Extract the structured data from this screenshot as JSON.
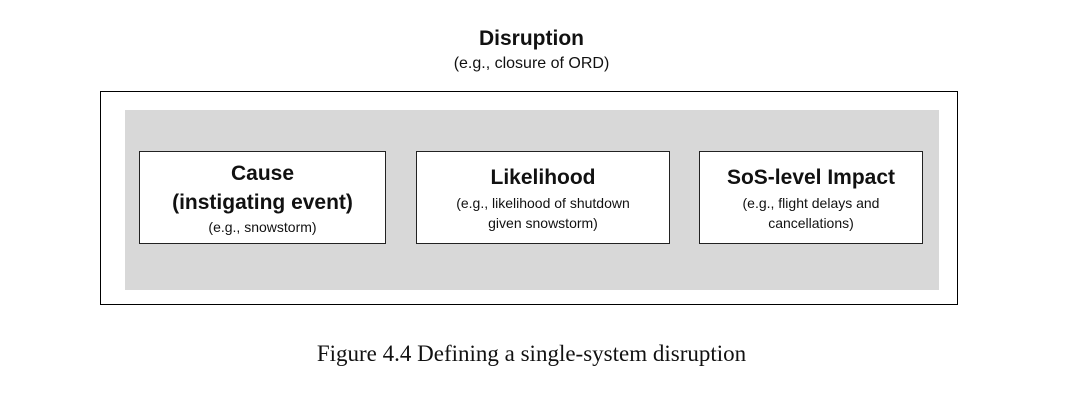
{
  "header": {
    "title": "Disruption",
    "subtitle": "(e.g., closure of ORD)"
  },
  "boxes": [
    {
      "title_line1": "Cause",
      "title_line2": "(instigating event)",
      "detail_line1": "(e.g., snowstorm)"
    },
    {
      "title_line1": "Likelihood",
      "detail_line1": "(e.g., likelihood of shutdown",
      "detail_line2": "given snowstorm)"
    },
    {
      "title_line1": "SoS-level Impact",
      "detail_line1": "(e.g., flight delays and",
      "detail_line2": "cancellations)"
    }
  ],
  "caption": "Figure 4.4 Defining a single-system disruption",
  "colors": {
    "panel_fill": "#d8d8d8",
    "frame_stroke": "#000000",
    "box_fill": "#ffffff"
  }
}
